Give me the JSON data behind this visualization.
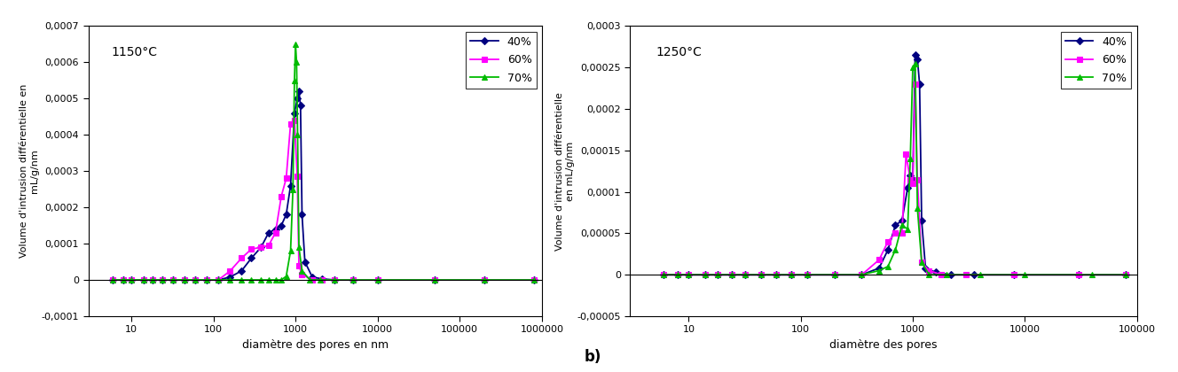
{
  "chart_a": {
    "title": "1150°C",
    "xlabel": "diamètre des pores en nm",
    "ylabel": "Volume d'intrusion différentielle en\nmL/g/nm",
    "xlim": [
      3,
      1000000
    ],
    "ylim": [
      -0.0001,
      0.0007
    ],
    "yticks": [
      -0.0001,
      0,
      0.0001,
      0.0002,
      0.0003,
      0.0004,
      0.0005,
      0.0006,
      0.0007
    ],
    "ytick_labels": [
      "-0,0001",
      "0",
      "0,0001",
      "0,0002",
      "0,0003",
      "0,0004",
      "0,0005",
      "0,0006",
      "0,0007"
    ],
    "xtick_vals": [
      10,
      100,
      1000,
      10000,
      100000,
      1000000
    ],
    "xtick_labels": [
      "10",
      "100",
      "1000",
      "10000",
      "100000",
      "1000000"
    ],
    "series": {
      "40%": {
        "color": "#000080",
        "marker": "D",
        "x": [
          6,
          8,
          10,
          14,
          18,
          24,
          32,
          44,
          60,
          82,
          115,
          160,
          220,
          290,
          380,
          470,
          570,
          670,
          770,
          870,
          970,
          1050,
          1100,
          1150,
          1200,
          1300,
          1600,
          2100,
          3000,
          5000,
          10000,
          50000,
          200000,
          800000
        ],
        "y": [
          0,
          0,
          0,
          0,
          0,
          0,
          0,
          0,
          0,
          0,
          0,
          8e-06,
          2.5e-05,
          6e-05,
          9e-05,
          0.00013,
          0.00014,
          0.00015,
          0.00018,
          0.00026,
          0.00046,
          0.0005,
          0.00052,
          0.00048,
          0.00018,
          5e-05,
          8e-06,
          3e-06,
          0,
          0,
          0,
          0,
          0,
          0
        ]
      },
      "60%": {
        "color": "#FF00FF",
        "marker": "s",
        "x": [
          6,
          8,
          10,
          14,
          18,
          24,
          32,
          44,
          60,
          82,
          115,
          160,
          220,
          290,
          380,
          470,
          570,
          670,
          770,
          870,
          970,
          1050,
          1100,
          1200,
          1600,
          2100,
          3000,
          5000,
          10000,
          50000,
          200000,
          800000
        ],
        "y": [
          0,
          0,
          0,
          0,
          0,
          0,
          0,
          0,
          0,
          0,
          0,
          2.5e-05,
          6e-05,
          8.5e-05,
          9e-05,
          9.5e-05,
          0.00013,
          0.00023,
          0.00028,
          0.00043,
          0.00044,
          0.000285,
          4e-05,
          1.5e-05,
          0,
          0,
          0,
          0,
          0,
          0,
          0,
          0
        ]
      },
      "70%": {
        "color": "#00BB00",
        "marker": "^",
        "x": [
          6,
          8,
          10,
          14,
          18,
          24,
          32,
          44,
          60,
          82,
          115,
          160,
          220,
          290,
          380,
          470,
          570,
          670,
          770,
          870,
          930,
          970,
          1000,
          1030,
          1060,
          1100,
          1200,
          1500,
          2000,
          3000,
          5000,
          10000,
          50000,
          200000,
          800000
        ],
        "y": [
          0,
          0,
          0,
          0,
          0,
          0,
          0,
          0,
          0,
          0,
          0,
          0,
          0,
          0,
          0,
          0,
          0,
          0,
          1e-05,
          8e-05,
          0.00025,
          0.00055,
          0.00065,
          0.0006,
          0.0004,
          9e-05,
          2.5e-05,
          0,
          0,
          0,
          0,
          0,
          0,
          0,
          0
        ]
      }
    }
  },
  "chart_b": {
    "title": "1250°C",
    "xlabel": "diamètre des pores",
    "ylabel": "Volume d'intrusion différentielle\nen mL/g/nm",
    "xlim": [
      3,
      100000
    ],
    "ylim": [
      -5e-05,
      0.0003
    ],
    "yticks": [
      -5e-05,
      0,
      5e-05,
      0.0001,
      0.00015,
      0.0002,
      0.00025,
      0.0003
    ],
    "ytick_labels": [
      "-0,00005",
      "0",
      "0,00005",
      "0,0001",
      "0,00015",
      "0,0002",
      "0,00025",
      "0,0003"
    ],
    "xtick_vals": [
      10,
      100,
      1000,
      10000,
      100000
    ],
    "xtick_labels": [
      "10",
      "100",
      "1000",
      "10000",
      "100000"
    ],
    "series": {
      "40%": {
        "color": "#000080",
        "marker": "D",
        "x": [
          6,
          8,
          10,
          14,
          18,
          24,
          32,
          44,
          60,
          82,
          115,
          200,
          350,
          500,
          600,
          700,
          800,
          900,
          950,
          1000,
          1050,
          1100,
          1150,
          1200,
          1300,
          1600,
          2200,
          3500,
          8000,
          30000,
          80000
        ],
        "y": [
          0,
          0,
          0,
          0,
          0,
          0,
          0,
          0,
          0,
          0,
          0,
          0,
          0,
          8e-06,
          3e-05,
          6e-05,
          6.5e-05,
          0.000105,
          0.00012,
          0.000115,
          0.000265,
          0.00026,
          0.00023,
          6.5e-05,
          8e-06,
          3e-06,
          0,
          0,
          0,
          0,
          0
        ]
      },
      "60%": {
        "color": "#FF00FF",
        "marker": "s",
        "x": [
          6,
          8,
          10,
          14,
          18,
          24,
          32,
          44,
          60,
          82,
          115,
          200,
          350,
          500,
          600,
          700,
          800,
          870,
          950,
          1000,
          1050,
          1100,
          1200,
          1400,
          1800,
          3000,
          8000,
          30000,
          80000
        ],
        "y": [
          0,
          0,
          0,
          0,
          0,
          0,
          0,
          0,
          0,
          0,
          0,
          0,
          0,
          1.8e-05,
          4e-05,
          5e-05,
          5e-05,
          0.000145,
          0.000115,
          0.00011,
          0.00023,
          0.000115,
          1.5e-05,
          5e-06,
          0,
          0,
          0,
          0,
          0
        ]
      },
      "70%": {
        "color": "#00BB00",
        "marker": "^",
        "x": [
          6,
          8,
          10,
          14,
          18,
          24,
          32,
          44,
          60,
          82,
          115,
          200,
          350,
          500,
          600,
          700,
          800,
          900,
          950,
          1000,
          1050,
          1100,
          1200,
          1400,
          2000,
          4000,
          10000,
          40000,
          80000
        ],
        "y": [
          0,
          0,
          0,
          0,
          0,
          0,
          0,
          0,
          0,
          0,
          0,
          0,
          0,
          5e-06,
          1e-05,
          3e-05,
          6e-05,
          5.5e-05,
          0.00014,
          0.00025,
          0.000255,
          8e-05,
          1.5e-05,
          0,
          0,
          0,
          0,
          0,
          0
        ]
      }
    }
  },
  "label_b": "b)",
  "background_color": "#ffffff"
}
